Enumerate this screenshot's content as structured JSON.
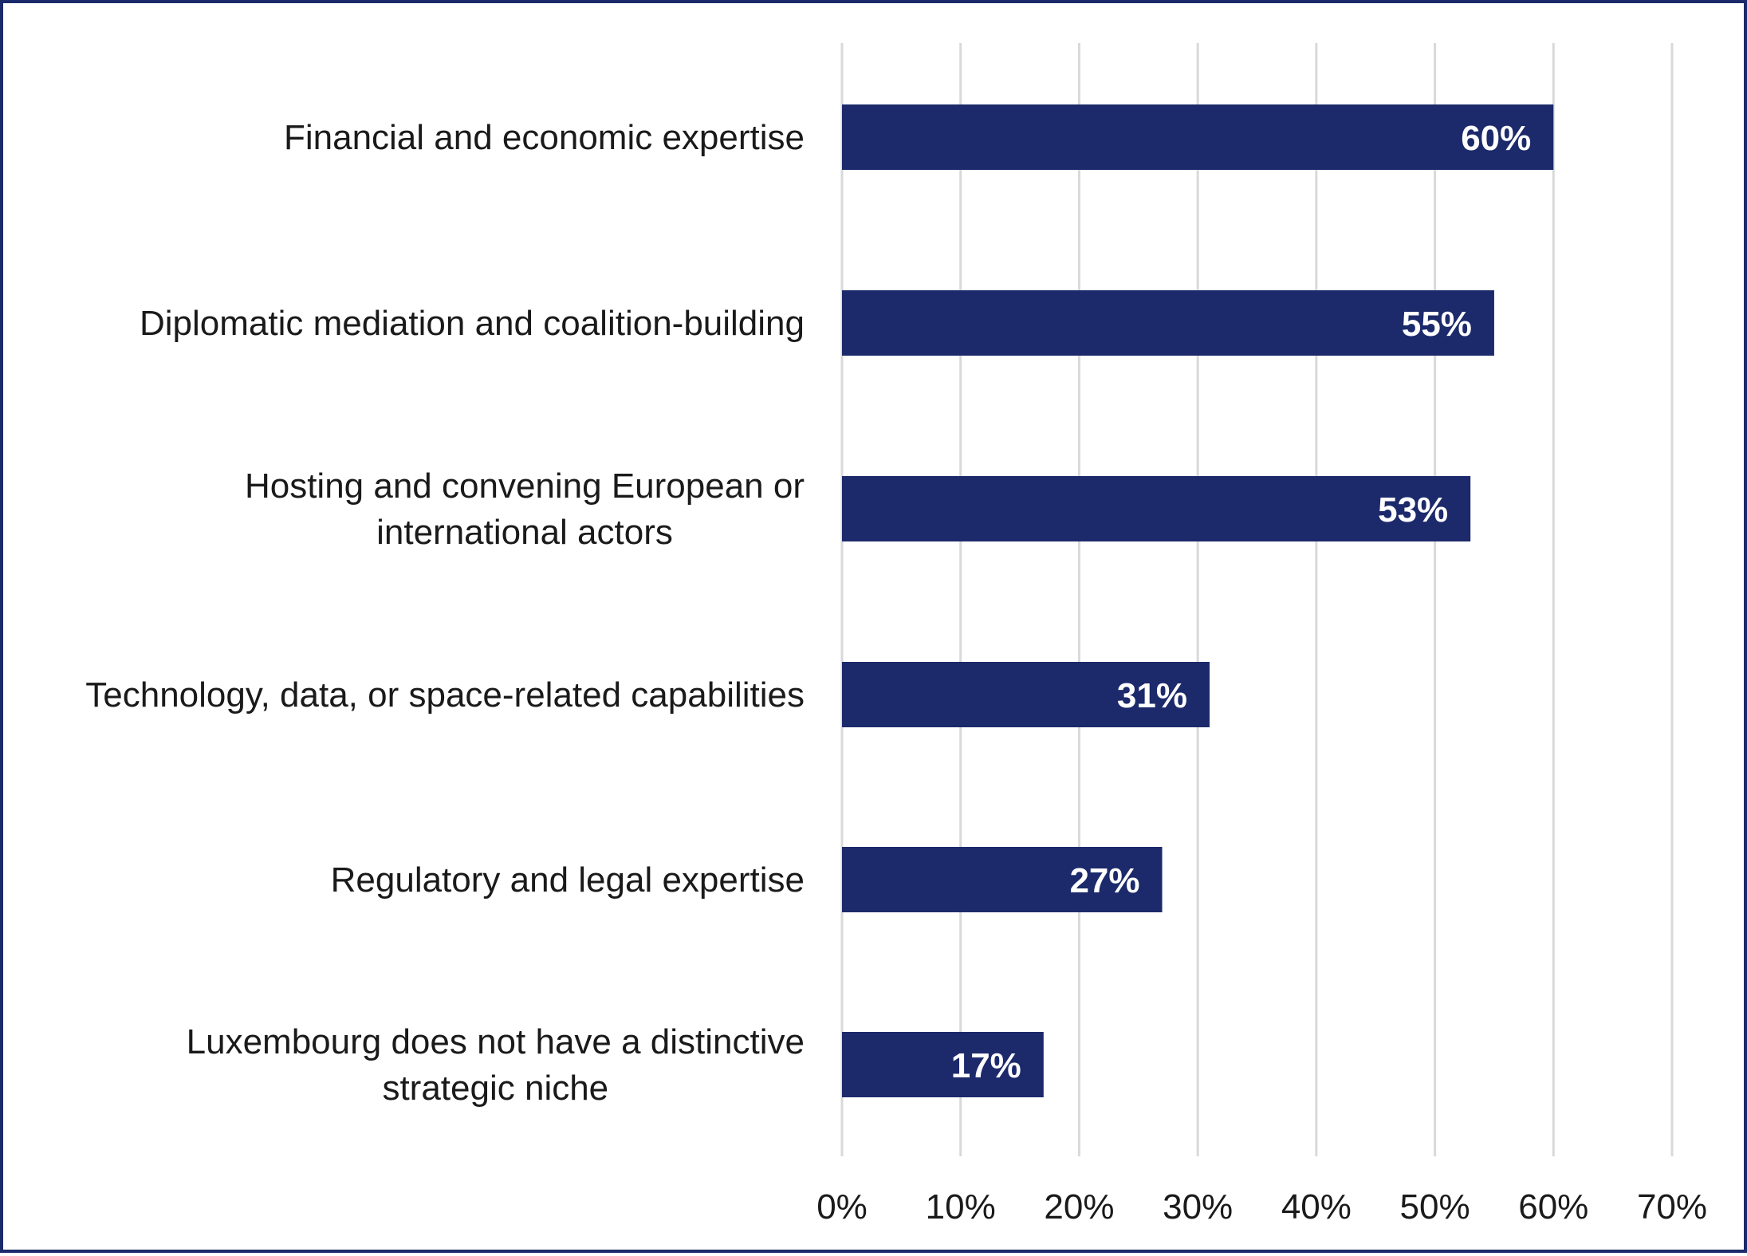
{
  "chart_data": {
    "type": "bar",
    "orientation": "horizontal",
    "categories": [
      "Financial and economic expertise",
      "Diplomatic mediation and coalition-building",
      "Hosting and convening European or international actors",
      "Technology, data, or space-related capabilities",
      "Regulatory and legal expertise",
      "Luxembourg does not have a distinctive strategic niche"
    ],
    "category_lines": [
      [
        "Financial and economic expertise"
      ],
      [
        "Diplomatic mediation and coalition-building"
      ],
      [
        "Hosting and convening European or",
        "international actors"
      ],
      [
        "Technology, data, or space-related capabilities"
      ],
      [
        "Regulatory and legal expertise"
      ],
      [
        "Luxembourg does not have a distinctive",
        "strategic niche"
      ]
    ],
    "values": [
      60,
      55,
      53,
      31,
      27,
      17
    ],
    "data_labels": [
      "60%",
      "55%",
      "53%",
      "31%",
      "27%",
      "17%"
    ],
    "xlim": [
      0,
      70
    ],
    "x_ticks": [
      0,
      10,
      20,
      30,
      40,
      50,
      60,
      70
    ],
    "x_tick_labels": [
      "0%",
      "10%",
      "20%",
      "30%",
      "40%",
      "50%",
      "60%",
      "70%"
    ],
    "grid": "vertical",
    "legend": "none",
    "colors": {
      "bar": "#1c2a6b",
      "frame": "#1b2a6b",
      "grid": "#d9d9d9",
      "data_label": "#ffffff",
      "text": "#1a1a1a"
    }
  }
}
